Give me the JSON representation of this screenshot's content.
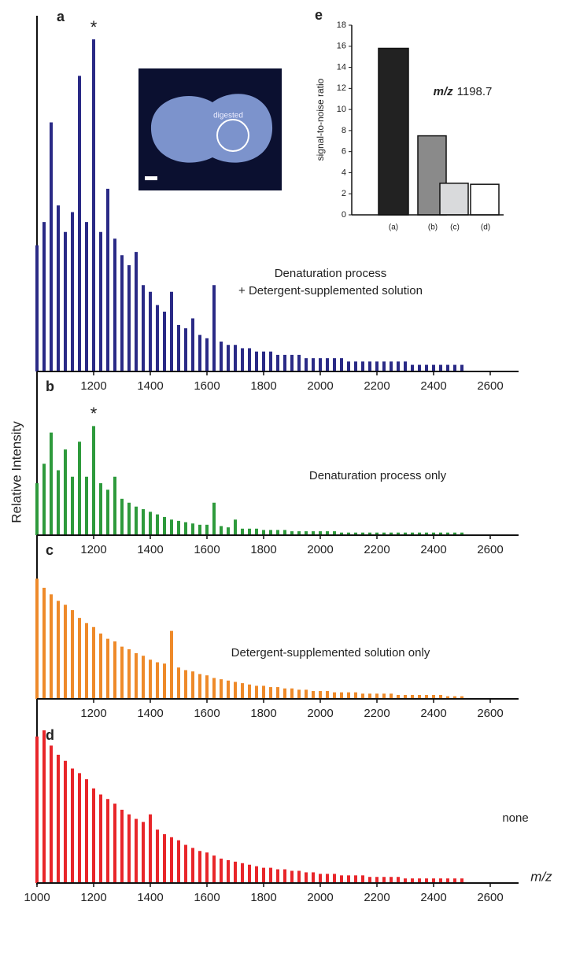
{
  "chart_data": [
    {
      "type": "spectrum",
      "panel": "a",
      "color": "#2a2a86",
      "annotation": [
        "Denaturation process",
        "+ Detergent-supplemented solution"
      ],
      "star": "*",
      "x": [
        1000,
        1025,
        1050,
        1075,
        1100,
        1125,
        1150,
        1175,
        1200,
        1225,
        1250,
        1275,
        1300,
        1325,
        1350,
        1375,
        1400,
        1425,
        1450,
        1475,
        1500,
        1525,
        1550,
        1575,
        1600,
        1625,
        1650,
        1675,
        1700,
        1725,
        1750,
        1775,
        1800,
        1825,
        1850,
        1875,
        1900,
        1925,
        1950,
        1975,
        2000,
        2025,
        2050,
        2075,
        2100,
        2125,
        2150,
        2175,
        2200,
        2225,
        2250,
        2275,
        2300,
        2325,
        2350,
        2375,
        2400,
        2425,
        2450,
        2475,
        2500
      ],
      "values": [
        38,
        45,
        75,
        50,
        42,
        48,
        89,
        45,
        100,
        42,
        55,
        40,
        35,
        32,
        36,
        26,
        24,
        20,
        18,
        24,
        14,
        13,
        16,
        11,
        10,
        26,
        9,
        8,
        8,
        7,
        7,
        6,
        6,
        6,
        5,
        5,
        5,
        5,
        4,
        4,
        4,
        4,
        4,
        4,
        3,
        3,
        3,
        3,
        3,
        3,
        3,
        3,
        3,
        2,
        2,
        2,
        2,
        2,
        2,
        2,
        2
      ],
      "xlim": [
        1000,
        2700
      ],
      "xticks": [
        1200,
        1400,
        1600,
        1800,
        2000,
        2200,
        2400,
        2600
      ],
      "ylim": [
        0,
        100
      ]
    },
    {
      "type": "spectrum",
      "panel": "b",
      "color": "#2e9a3c",
      "annotation": [
        "Denaturation process only"
      ],
      "star": "*",
      "x": [
        1000,
        1025,
        1050,
        1075,
        1100,
        1125,
        1150,
        1175,
        1200,
        1225,
        1250,
        1275,
        1300,
        1325,
        1350,
        1375,
        1400,
        1425,
        1450,
        1475,
        1500,
        1525,
        1550,
        1575,
        1600,
        1625,
        1650,
        1675,
        1700,
        1725,
        1750,
        1775,
        1800,
        1825,
        1850,
        1875,
        1900,
        1925,
        1950,
        1975,
        2000,
        2025,
        2050,
        2075,
        2100,
        2125,
        2150,
        2175,
        2200,
        2225,
        2250,
        2275,
        2300,
        2325,
        2350,
        2375,
        2400,
        2425,
        2450,
        2475,
        2500
      ],
      "values": [
        40,
        55,
        79,
        50,
        66,
        45,
        72,
        45,
        84,
        40,
        35,
        45,
        28,
        25,
        22,
        20,
        18,
        16,
        14,
        12,
        11,
        10,
        9,
        8,
        8,
        25,
        7,
        6,
        12,
        5,
        5,
        5,
        4,
        4,
        4,
        4,
        3,
        3,
        3,
        3,
        3,
        3,
        3,
        2,
        2,
        2,
        2,
        2,
        2,
        2,
        2,
        2,
        2,
        2,
        2,
        2,
        2,
        2,
        2,
        2,
        2
      ],
      "xlim": [
        1000,
        2700
      ],
      "xticks": [
        1200,
        1400,
        1600,
        1800,
        2000,
        2200,
        2400,
        2600
      ],
      "ylim": [
        0,
        100
      ]
    },
    {
      "type": "spectrum",
      "panel": "c",
      "color": "#ee8a2a",
      "annotation": [
        "Detergent-supplemented solution only"
      ],
      "x": [
        1000,
        1025,
        1050,
        1075,
        1100,
        1125,
        1150,
        1175,
        1200,
        1225,
        1250,
        1275,
        1300,
        1325,
        1350,
        1375,
        1400,
        1425,
        1450,
        1475,
        1500,
        1525,
        1550,
        1575,
        1600,
        1625,
        1650,
        1675,
        1700,
        1725,
        1750,
        1775,
        1800,
        1825,
        1850,
        1875,
        1900,
        1925,
        1950,
        1975,
        2000,
        2025,
        2050,
        2075,
        2100,
        2125,
        2150,
        2175,
        2200,
        2225,
        2250,
        2275,
        2300,
        2325,
        2350,
        2375,
        2400,
        2425,
        2450,
        2475,
        2500
      ],
      "values": [
        92,
        85,
        80,
        75,
        72,
        68,
        62,
        58,
        55,
        50,
        46,
        44,
        40,
        38,
        35,
        33,
        30,
        28,
        27,
        52,
        24,
        22,
        21,
        19,
        18,
        16,
        15,
        14,
        13,
        12,
        11,
        10,
        10,
        9,
        9,
        8,
        8,
        7,
        7,
        6,
        6,
        6,
        5,
        5,
        5,
        5,
        4,
        4,
        4,
        4,
        4,
        3,
        3,
        3,
        3,
        3,
        3,
        3,
        2,
        2,
        2
      ],
      "xlim": [
        1000,
        2700
      ],
      "xticks": [
        1200,
        1400,
        1600,
        1800,
        2000,
        2200,
        2400,
        2600
      ],
      "ylim": [
        0,
        100
      ]
    },
    {
      "type": "spectrum",
      "panel": "d",
      "color": "#e8262a",
      "annotation": [
        "none"
      ],
      "xlabel": "m/z",
      "x": [
        1000,
        1025,
        1050,
        1075,
        1100,
        1125,
        1150,
        1175,
        1200,
        1225,
        1250,
        1275,
        1300,
        1325,
        1350,
        1375,
        1400,
        1425,
        1450,
        1475,
        1500,
        1525,
        1550,
        1575,
        1600,
        1625,
        1650,
        1675,
        1700,
        1725,
        1750,
        1775,
        1800,
        1825,
        1850,
        1875,
        1900,
        1925,
        1950,
        1975,
        2000,
        2025,
        2050,
        2075,
        2100,
        2125,
        2150,
        2175,
        2200,
        2225,
        2250,
        2275,
        2300,
        2325,
        2350,
        2375,
        2400,
        2425,
        2450,
        2475,
        2500
      ],
      "values": [
        96,
        100,
        90,
        84,
        80,
        75,
        72,
        68,
        62,
        58,
        55,
        52,
        48,
        45,
        42,
        40,
        45,
        35,
        32,
        30,
        28,
        25,
        23,
        21,
        20,
        18,
        16,
        15,
        14,
        13,
        12,
        11,
        10,
        10,
        9,
        9,
        8,
        8,
        7,
        7,
        6,
        6,
        6,
        5,
        5,
        5,
        5,
        4,
        4,
        4,
        4,
        4,
        3,
        3,
        3,
        3,
        3,
        3,
        3,
        3,
        3
      ],
      "xlim": [
        1000,
        2700
      ],
      "xticks": [
        1000,
        1200,
        1400,
        1600,
        1800,
        2000,
        2200,
        2400,
        2600
      ],
      "ylim": [
        0,
        100
      ]
    },
    {
      "type": "bar",
      "panel": "e",
      "ylabel": "signal-to-noise ratio",
      "annotation": {
        "emphasis": "m/z",
        "text": "1198.7"
      },
      "categories": [
        "(a)",
        "(b)",
        "(c)",
        "(d)"
      ],
      "values": [
        15.8,
        7.5,
        3.0,
        2.9
      ],
      "colors": [
        "#222222",
        "#8a8a8a",
        "#d9dadc",
        "#ffffff"
      ],
      "ylim": [
        0,
        18
      ],
      "yticks": [
        0,
        2,
        4,
        6,
        8,
        10,
        12,
        14,
        16,
        18
      ]
    }
  ],
  "ylabel": "Relative Intensity",
  "inset": {
    "label": "digested"
  }
}
